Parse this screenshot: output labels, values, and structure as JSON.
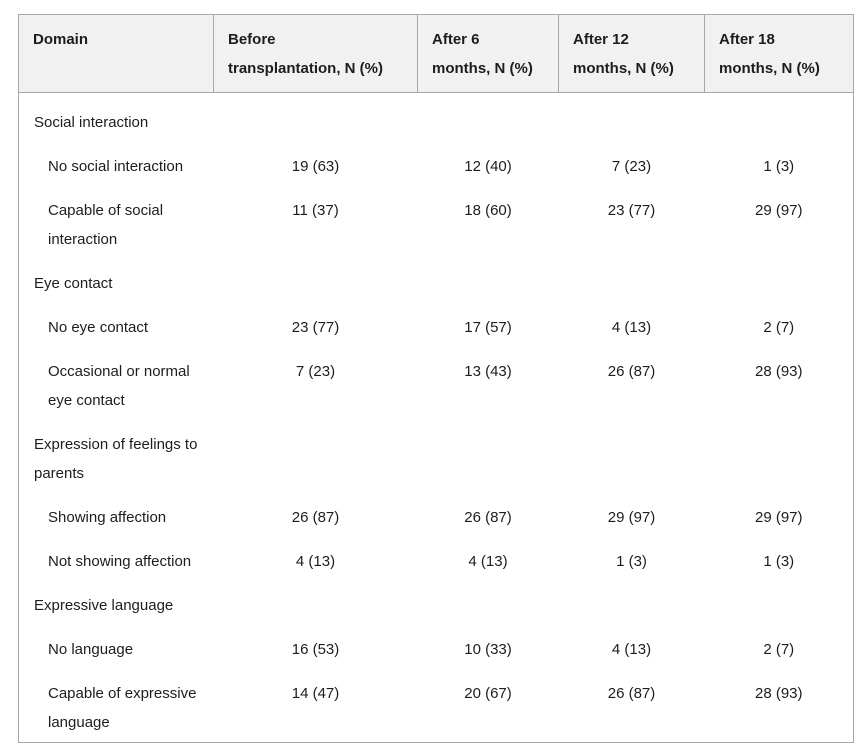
{
  "table": {
    "columns": [
      {
        "label": "Domain",
        "lines": [
          "Domain"
        ]
      },
      {
        "label": "Before transplantation, N (%)",
        "lines": [
          "Before",
          "transplantation, N (%)"
        ]
      },
      {
        "label": "After 6 months, N (%)",
        "lines": [
          "After 6",
          "months, N (%)"
        ]
      },
      {
        "label": "After 12 months, N (%)",
        "lines": [
          "After 12",
          "months, N (%)"
        ]
      },
      {
        "label": "After 18 months, N (%)",
        "lines": [
          "After 18",
          "months, N (%)"
        ]
      }
    ],
    "sections": [
      {
        "domain": "Social interaction",
        "rows": [
          {
            "label": "No social interaction",
            "values": [
              "19 (63)",
              "12 (40)",
              "7 (23)",
              "1 (3)"
            ]
          },
          {
            "label": "Capable of social interaction",
            "values": [
              "11 (37)",
              "18 (60)",
              "23 (77)",
              "29 (97)"
            ]
          }
        ]
      },
      {
        "domain": "Eye contact",
        "rows": [
          {
            "label": "No eye contact",
            "values": [
              "23 (77)",
              "17 (57)",
              "4 (13)",
              "2 (7)"
            ]
          },
          {
            "label": "Occasional or normal eye contact",
            "values": [
              "7 (23)",
              "13 (43)",
              "26 (87)",
              "28 (93)"
            ]
          }
        ]
      },
      {
        "domain": "Expression of feelings to parents",
        "rows": [
          {
            "label": "Showing affection",
            "values": [
              "26 (87)",
              "26 (87)",
              "29 (97)",
              "29 (97)"
            ]
          },
          {
            "label": "Not showing affection",
            "values": [
              "4 (13)",
              "4 (13)",
              "1 (3)",
              "1 (3)"
            ]
          }
        ]
      },
      {
        "domain": "Expressive language",
        "rows": [
          {
            "label": "No language",
            "values": [
              "16 (53)",
              "10 (33)",
              "4 (13)",
              "2 (7)"
            ]
          },
          {
            "label": "Capable of expressive language",
            "values": [
              "14 (47)",
              "20 (67)",
              "26 (87)",
              "28 (93)"
            ]
          }
        ]
      }
    ],
    "chart_data": {
      "type": "table",
      "title": "",
      "categories": [
        "Before transplantation",
        "After 6 months",
        "After 12 months",
        "After 18 months"
      ],
      "series": [
        {
          "name": "No social interaction (N)",
          "values": [
            19,
            12,
            7,
            1
          ]
        },
        {
          "name": "Capable of social interaction (N)",
          "values": [
            11,
            18,
            23,
            29
          ]
        },
        {
          "name": "No eye contact (N)",
          "values": [
            23,
            17,
            4,
            2
          ]
        },
        {
          "name": "Occasional or normal eye contact (N)",
          "values": [
            7,
            13,
            26,
            28
          ]
        },
        {
          "name": "Showing affection (N)",
          "values": [
            26,
            26,
            29,
            29
          ]
        },
        {
          "name": "Not showing affection (N)",
          "values": [
            4,
            4,
            1,
            1
          ]
        },
        {
          "name": "No language (N)",
          "values": [
            16,
            10,
            4,
            2
          ]
        },
        {
          "name": "Capable of expressive language (N)",
          "values": [
            14,
            20,
            26,
            28
          ]
        }
      ]
    },
    "colors": {
      "header_bg": "#f1f1f1",
      "border": "#a8a8a8",
      "text": "#1d1d1d"
    }
  }
}
